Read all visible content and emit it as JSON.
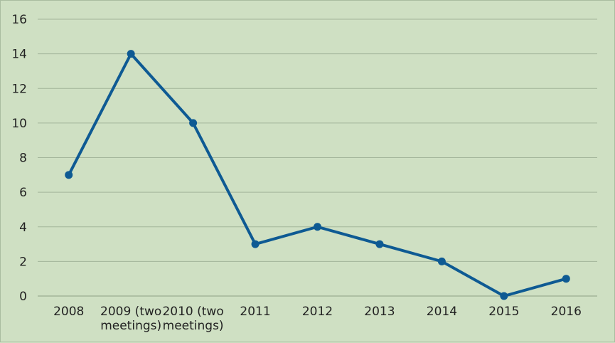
{
  "chart_data": {
    "type": "line",
    "title": "",
    "xlabel": "",
    "ylabel": "",
    "categories": [
      [
        "2008"
      ],
      [
        "2009 (two",
        "meetings)"
      ],
      [
        "2010 (two",
        "meetings)"
      ],
      [
        "2011"
      ],
      [
        "2012"
      ],
      [
        "2013"
      ],
      [
        "2014"
      ],
      [
        "2015"
      ],
      [
        "2016"
      ]
    ],
    "series": [
      {
        "values": [
          7,
          14,
          10,
          3,
          4,
          3,
          2,
          0,
          1
        ],
        "color": "#0e5a93"
      }
    ],
    "ylim": [
      0,
      16
    ],
    "yticks": [
      "0",
      "2",
      "4",
      "6",
      "8",
      "10",
      "12",
      "14",
      "16"
    ],
    "grid": true,
    "legend": "none"
  }
}
